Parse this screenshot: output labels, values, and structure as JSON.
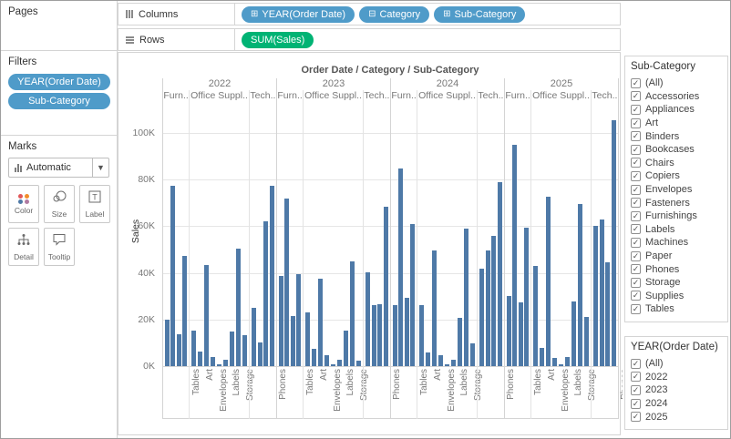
{
  "pages_panel": {
    "title": "Pages"
  },
  "filters_panel": {
    "title": "Filters",
    "pills": [
      {
        "label": "YEAR(Order Date)"
      },
      {
        "label": "Sub-Category"
      }
    ]
  },
  "marks_panel": {
    "title": "Marks",
    "mark_type": "Automatic",
    "buttons": [
      {
        "label": "Color",
        "icon": "color-dots-icon"
      },
      {
        "label": "Size",
        "icon": "size-circles-icon"
      },
      {
        "label": "Label",
        "icon": "label-t-icon"
      },
      {
        "label": "Detail",
        "icon": "detail-tree-icon"
      },
      {
        "label": "Tooltip",
        "icon": "tooltip-bubble-icon"
      }
    ],
    "color_dot_colors": [
      "#e15759",
      "#f28e2b",
      "#4e79a7",
      "#b07aa1"
    ]
  },
  "shelves": {
    "columns": {
      "label": "Columns",
      "pills": [
        {
          "prefix": "⊞",
          "label": "YEAR(Order Date)"
        },
        {
          "prefix": "⊟",
          "label": "Category"
        },
        {
          "prefix": "⊞",
          "label": "Sub-Category"
        }
      ]
    },
    "rows": {
      "label": "Rows",
      "pills": [
        {
          "prefix": "",
          "label": "SUM(Sales)"
        }
      ]
    }
  },
  "colors": {
    "bar": "#4e79a7",
    "dimension_pill": "#4f9bc9",
    "measure_pill": "#00b374",
    "gridline": "#e6e6e6",
    "axis_text": "#787878"
  },
  "chart_data": {
    "type": "bar",
    "title": "Order Date / Category / Sub-Category",
    "ylabel": "Sales",
    "y_ticks": [
      "0K",
      "20K",
      "40K",
      "60K",
      "80K",
      "100K"
    ],
    "ylim_k": [
      0,
      113
    ],
    "grid": true,
    "years": [
      "2022",
      "2023",
      "2024",
      "2025"
    ],
    "category_headers": [
      "Furn..",
      "Office Suppl..",
      "Tech.."
    ],
    "group_sizes": [
      4,
      9,
      4
    ],
    "subcategory_order": [
      "Bookcases",
      "Chairs",
      "Furnishings",
      "Tables",
      "Appliances",
      "Art",
      "Binders",
      "Envelopes",
      "Fasteners",
      "Labels",
      "Paper",
      "Storage",
      "Supplies",
      "Accessories",
      "Copiers",
      "Machines",
      "Phones"
    ],
    "x_axis_visible_labels": [
      "Tables",
      "Art",
      "Envelopes",
      "Labels",
      "Storage",
      "Phones"
    ],
    "x_axis_visible_label_positions": [
      3,
      5,
      7,
      9,
      11,
      16
    ],
    "series": [
      {
        "year": "2022",
        "values_k": [
          19.8,
          77.2,
          13.8,
          47.4,
          15.3,
          6.1,
          43.5,
          3.9,
          0.7,
          2.8,
          14.8,
          50.3,
          13.3,
          25.0,
          10.2,
          62.0,
          77.4
        ]
      },
      {
        "year": "2023",
        "values_k": [
          38.5,
          71.7,
          21.4,
          39.3,
          23.2,
          7.5,
          37.5,
          4.5,
          0.9,
          2.9,
          15.3,
          45.0,
          2.4,
          40.2,
          26.2,
          26.7,
          68.3
        ]
      },
      {
        "year": "2024",
        "values_k": [
          26.3,
          84.6,
          29.2,
          60.9,
          26.2,
          5.8,
          49.7,
          4.6,
          0.8,
          2.6,
          20.6,
          58.8,
          9.9,
          41.9,
          49.6,
          55.9,
          78.9
        ]
      },
      {
        "year": "2025",
        "values_k": [
          30.0,
          95.0,
          27.3,
          59.4,
          42.9,
          7.8,
          72.8,
          3.4,
          0.9,
          4.1,
          27.7,
          69.7,
          21.1,
          60.3,
          62.9,
          44.5,
          105.3
        ]
      }
    ]
  },
  "filter_cards": [
    {
      "title": "Sub-Category",
      "items": [
        "(All)",
        "Accessories",
        "Appliances",
        "Art",
        "Binders",
        "Bookcases",
        "Chairs",
        "Copiers",
        "Envelopes",
        "Fasteners",
        "Furnishings",
        "Labels",
        "Machines",
        "Paper",
        "Phones",
        "Storage",
        "Supplies",
        "Tables"
      ],
      "all_checked": true
    },
    {
      "title": "YEAR(Order Date)",
      "items": [
        "(All)",
        "2022",
        "2023",
        "2024",
        "2025"
      ],
      "all_checked": true
    }
  ]
}
